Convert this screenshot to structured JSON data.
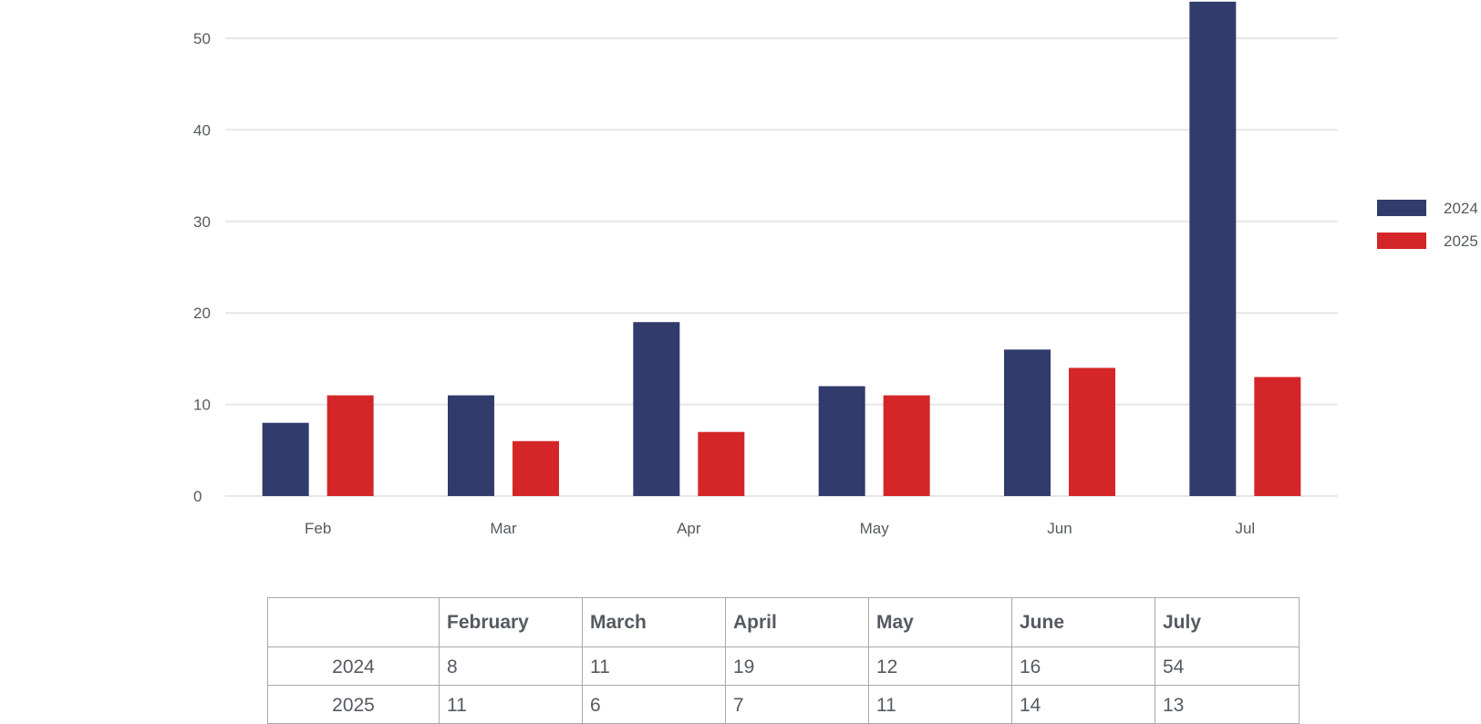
{
  "chart_data": {
    "type": "bar",
    "categories": [
      "Feb",
      "Mar",
      "Apr",
      "May",
      "Jun",
      "Jul"
    ],
    "series": [
      {
        "name": "2024",
        "values": [
          8,
          11,
          19,
          12,
          16,
          54
        ],
        "color": "#313b6c"
      },
      {
        "name": "2025",
        "values": [
          11,
          6,
          7,
          11,
          14,
          13
        ],
        "color": "#d42628"
      }
    ],
    "yticks": [
      0,
      10,
      20,
      30,
      40,
      50
    ],
    "ylim": [
      0,
      55
    ],
    "grid": true,
    "legend_position": "right",
    "title": "",
    "xlabel": "",
    "ylabel": ""
  },
  "table": {
    "columns": [
      "",
      "February",
      "March",
      "April",
      "May",
      "June",
      "July"
    ],
    "rows": [
      {
        "label": "2024",
        "values": [
          "8",
          "11",
          "19",
          "12",
          "16",
          "54"
        ]
      },
      {
        "label": "2025",
        "values": [
          "11",
          "6",
          "7",
          "11",
          "14",
          "13"
        ]
      }
    ]
  }
}
